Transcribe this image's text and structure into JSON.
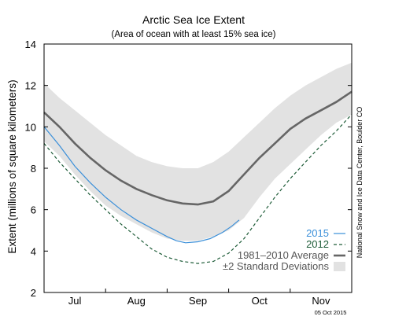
{
  "chart_data": {
    "type": "line",
    "title": "Arctic Sea Ice Extent",
    "subtitle": "(Area of ocean with at least 15% sea ice)",
    "ylabel": "Extent (millions of square kilometers)",
    "xlabel": "",
    "ylim": [
      2,
      14
    ],
    "yticks": [
      2,
      4,
      6,
      8,
      10,
      12,
      14
    ],
    "xlim": [
      0,
      5
    ],
    "xticks": [
      {
        "label": "Jul",
        "x": 0.5
      },
      {
        "label": "Aug",
        "x": 1.5
      },
      {
        "label": "Sep",
        "x": 2.5
      },
      {
        "label": "Oct",
        "x": 3.5
      },
      {
        "label": "Nov",
        "x": 4.5
      }
    ],
    "grid": false,
    "legend_position": "bottom-right",
    "series": [
      {
        "name": "2015",
        "style": "solid",
        "color": "#3a8fd9",
        "x": [
          0,
          0.25,
          0.5,
          0.75,
          1.0,
          1.25,
          1.5,
          1.75,
          2.0,
          2.15,
          2.3,
          2.5,
          2.7,
          2.9,
          3.05,
          3.17
        ],
        "y": [
          10.0,
          9.1,
          8.1,
          7.3,
          6.6,
          6.0,
          5.5,
          5.1,
          4.7,
          4.5,
          4.4,
          4.45,
          4.6,
          4.9,
          5.2,
          5.5
        ]
      },
      {
        "name": "2012",
        "style": "dashed",
        "color": "#1e5c38",
        "x": [
          0,
          0.25,
          0.5,
          0.75,
          1.0,
          1.25,
          1.5,
          1.75,
          2.0,
          2.25,
          2.5,
          2.75,
          3.0,
          3.25,
          3.5,
          3.75,
          4.0,
          4.25,
          4.5,
          4.75,
          5.0
        ],
        "y": [
          9.2,
          8.3,
          7.5,
          6.7,
          6.0,
          5.3,
          4.7,
          4.1,
          3.7,
          3.5,
          3.4,
          3.5,
          3.9,
          4.6,
          5.6,
          6.6,
          7.5,
          8.3,
          9.1,
          9.8,
          10.6
        ]
      },
      {
        "name": "1981–2010 Average",
        "style": "solid-thick",
        "color": "#666666",
        "x": [
          0,
          0.25,
          0.5,
          0.75,
          1.0,
          1.25,
          1.5,
          1.75,
          2.0,
          2.25,
          2.5,
          2.75,
          3.0,
          3.25,
          3.5,
          3.75,
          4.0,
          4.25,
          4.5,
          4.75,
          5.0
        ],
        "y": [
          10.7,
          10.0,
          9.2,
          8.5,
          7.9,
          7.4,
          7.0,
          6.7,
          6.45,
          6.3,
          6.25,
          6.4,
          6.9,
          7.7,
          8.5,
          9.2,
          9.9,
          10.4,
          10.8,
          11.2,
          11.7
        ]
      },
      {
        "name": "±2 Standard Deviations",
        "style": "band",
        "color": "#e2e2e2",
        "x": [
          0,
          0.25,
          0.5,
          0.75,
          1.0,
          1.25,
          1.5,
          1.75,
          2.0,
          2.25,
          2.5,
          2.75,
          3.0,
          3.25,
          3.5,
          3.75,
          4.0,
          4.25,
          4.5,
          4.75,
          5.0
        ],
        "upper": [
          12.1,
          11.4,
          10.8,
          10.2,
          9.6,
          9.1,
          8.6,
          8.3,
          8.1,
          8.0,
          8.0,
          8.3,
          8.8,
          9.5,
          10.2,
          10.9,
          11.5,
          12.0,
          12.4,
          12.8,
          13.1
        ],
        "lower": [
          9.3,
          8.6,
          7.7,
          6.9,
          6.2,
          5.7,
          5.3,
          4.9,
          4.6,
          4.5,
          4.5,
          4.7,
          5.0,
          5.6,
          6.6,
          7.5,
          8.2,
          8.9,
          9.6,
          10.2,
          10.6
        ]
      }
    ],
    "side_label": "National Snow and Ice Data Center, Boulder CO",
    "date_label": "05 Oct 2015"
  }
}
